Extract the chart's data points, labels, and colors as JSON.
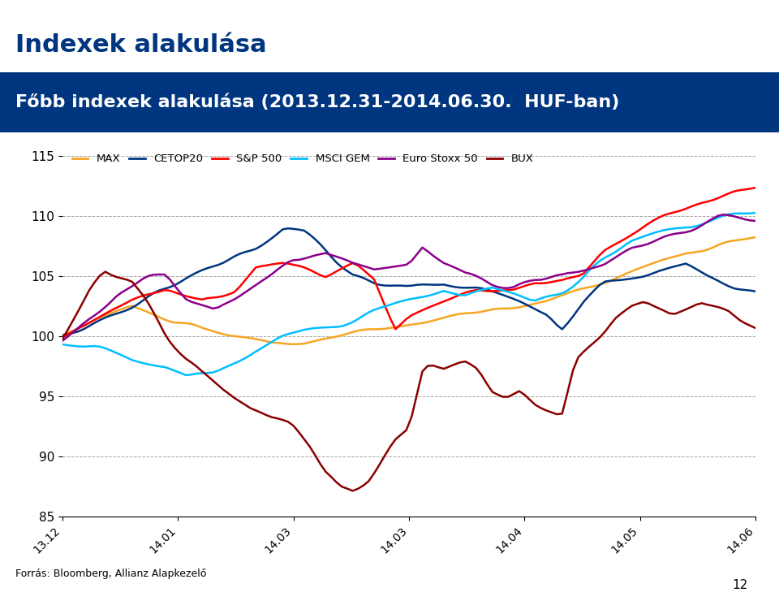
{
  "title": "Indexek alakulása",
  "subtitle": "Főbb indexek alakulása (2013.12.31-2014.06.30.  HUF-ban)",
  "footer": "Forrás: Bloomberg, Allianz Alapkezelő",
  "page_num": "12",
  "ylim": [
    85,
    116
  ],
  "yticks": [
    85,
    90,
    95,
    100,
    105,
    110,
    115
  ],
  "xtick_labels": [
    "13.12",
    "14.01",
    "14.03",
    "14.03",
    "14.04",
    "14.05",
    "14.06"
  ],
  "legend_labels": [
    "MAX",
    "CETOP20",
    "S&P 500",
    "MSCI GEM",
    "Euro Stoxx 50",
    "BUX"
  ],
  "colors": {
    "MAX": "#F5A623",
    "CETOP20": "#003580",
    "S&P 500": "#FF0000",
    "MSCI GEM": "#00BFFF",
    "Euro Stoxx 50": "#8B008B",
    "BUX": "#8B0000"
  },
  "background_header": "#003580",
  "title_color": "#003580",
  "subtitle_color": "#FFFFFF",
  "n_points": 130
}
